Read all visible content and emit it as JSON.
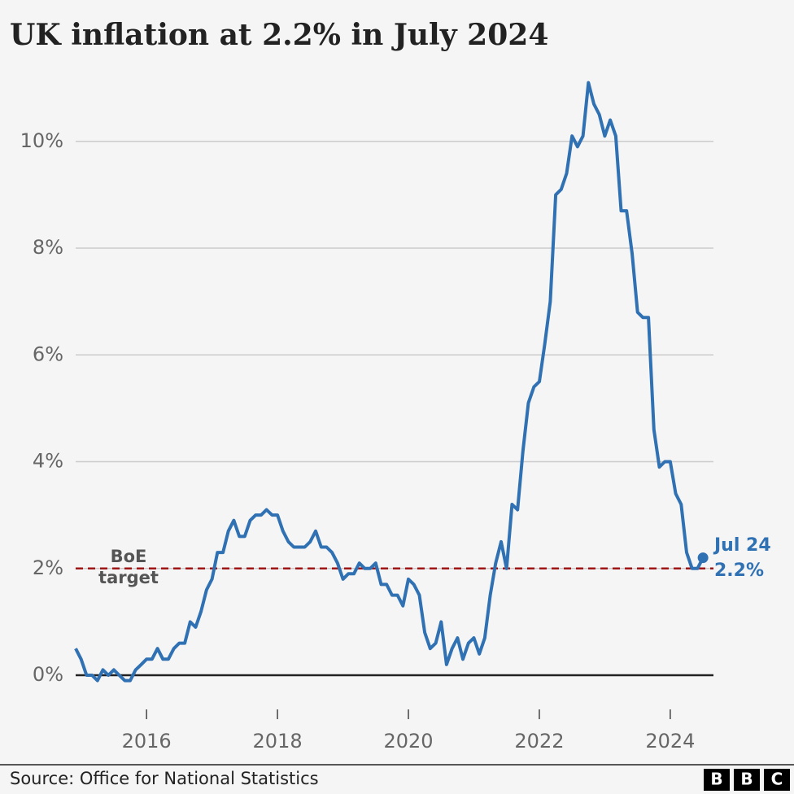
{
  "chart_data": {
    "type": "line",
    "title": "UK inflation at 2.2% in July 2024",
    "x": [
      2014.917,
      2015,
      2015.083,
      2015.167,
      2015.25,
      2015.333,
      2015.417,
      2015.5,
      2015.583,
      2015.667,
      2015.75,
      2015.833,
      2015.917,
      2016,
      2016.083,
      2016.167,
      2016.25,
      2016.333,
      2016.417,
      2016.5,
      2016.583,
      2016.667,
      2016.75,
      2016.833,
      2016.917,
      2017,
      2017.083,
      2017.167,
      2017.25,
      2017.333,
      2017.417,
      2017.5,
      2017.583,
      2017.667,
      2017.75,
      2017.833,
      2017.917,
      2018,
      2018.083,
      2018.167,
      2018.25,
      2018.333,
      2018.417,
      2018.5,
      2018.583,
      2018.667,
      2018.75,
      2018.833,
      2018.917,
      2019,
      2019.083,
      2019.167,
      2019.25,
      2019.333,
      2019.417,
      2019.5,
      2019.583,
      2019.667,
      2019.75,
      2019.833,
      2019.917,
      2020,
      2020.083,
      2020.167,
      2020.25,
      2020.333,
      2020.417,
      2020.5,
      2020.583,
      2020.667,
      2020.75,
      2020.833,
      2020.917,
      2021,
      2021.083,
      2021.167,
      2021.25,
      2021.333,
      2021.417,
      2021.5,
      2021.583,
      2021.667,
      2021.75,
      2021.833,
      2021.917,
      2022,
      2022.083,
      2022.167,
      2022.25,
      2022.333,
      2022.417,
      2022.5,
      2022.583,
      2022.667,
      2022.75,
      2022.833,
      2022.917,
      2023,
      2023.083,
      2023.167,
      2023.25,
      2023.333,
      2023.417,
      2023.5,
      2023.583,
      2023.667,
      2023.75,
      2023.833,
      2023.917,
      2024,
      2024.083,
      2024.167,
      2024.25,
      2024.333,
      2024.417,
      2024.5
    ],
    "values": [
      0.5,
      0.3,
      0.0,
      0.0,
      -0.1,
      0.1,
      0.0,
      0.1,
      0.0,
      -0.1,
      -0.1,
      0.1,
      0.2,
      0.3,
      0.3,
      0.5,
      0.3,
      0.3,
      0.5,
      0.6,
      0.6,
      1.0,
      0.9,
      1.2,
      1.6,
      1.8,
      2.3,
      2.3,
      2.7,
      2.9,
      2.6,
      2.6,
      2.9,
      3.0,
      3.0,
      3.1,
      3.0,
      3.0,
      2.7,
      2.5,
      2.4,
      2.4,
      2.4,
      2.5,
      2.7,
      2.4,
      2.4,
      2.3,
      2.1,
      1.8,
      1.9,
      1.9,
      2.1,
      2.0,
      2.0,
      2.1,
      1.7,
      1.7,
      1.5,
      1.5,
      1.3,
      1.8,
      1.7,
      1.5,
      0.8,
      0.5,
      0.6,
      1.0,
      0.2,
      0.5,
      0.7,
      0.3,
      0.6,
      0.7,
      0.4,
      0.7,
      1.5,
      2.1,
      2.5,
      2.0,
      3.2,
      3.1,
      4.2,
      5.1,
      5.4,
      5.5,
      6.2,
      7.0,
      9.0,
      9.1,
      9.4,
      10.1,
      9.9,
      10.1,
      11.1,
      10.7,
      10.5,
      10.1,
      10.4,
      10.1,
      8.7,
      8.7,
      7.9,
      6.8,
      6.7,
      6.7,
      4.6,
      3.9,
      4.0,
      4.0,
      3.4,
      3.2,
      2.3,
      2.0,
      2.0,
      2.2
    ],
    "color": "#3071b3",
    "xlim": [
      2014.917,
      2024.66
    ],
    "ylim": [
      -0.8,
      11.2
    ],
    "xticks": [
      2016,
      2018,
      2020,
      2022,
      2024
    ],
    "yticks": [
      {
        "value": 0,
        "label": "0%"
      },
      {
        "value": 2,
        "label": "2%"
      },
      {
        "value": 4,
        "label": "4%"
      },
      {
        "value": 6,
        "label": "6%"
      },
      {
        "value": 8,
        "label": "8%"
      },
      {
        "value": 10,
        "label": "10%"
      }
    ],
    "grid": true,
    "reference_line": {
      "value": 2,
      "label": [
        "BoE",
        "target"
      ],
      "color": "#a01515"
    },
    "end_label": {
      "label": "Jul 24",
      "value_label": "2.2%"
    },
    "source": "Source: Office for National Statistics",
    "logo": [
      "B",
      "B",
      "C"
    ]
  }
}
